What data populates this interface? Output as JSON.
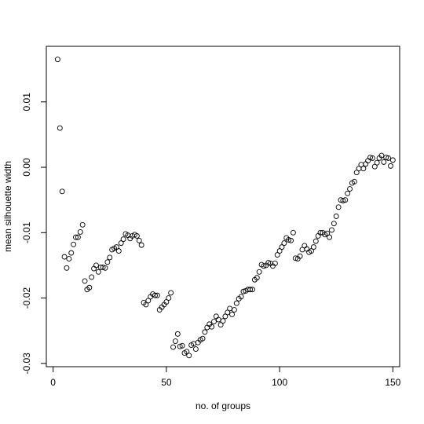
{
  "chart_data": {
    "type": "scatter",
    "title": "",
    "xlabel": "no. of groups",
    "ylabel": "mean silhouette width",
    "xlim": [
      -3,
      153
    ],
    "ylim": [
      -0.0305,
      0.0185
    ],
    "x_ticks": [
      {
        "value": 0,
        "label": "0"
      },
      {
        "value": 50,
        "label": "50"
      },
      {
        "value": 100,
        "label": "100"
      },
      {
        "value": 150,
        "label": "150"
      }
    ],
    "y_ticks": [
      {
        "value": -0.03,
        "label": "-0.03"
      },
      {
        "value": -0.02,
        "label": "-0.02"
      },
      {
        "value": -0.01,
        "label": "-0.01"
      },
      {
        "value": 0.0,
        "label": "0.00"
      },
      {
        "value": 0.01,
        "label": "0.01"
      }
    ],
    "grid": false,
    "x": [
      2,
      3,
      4,
      5,
      6,
      7,
      8,
      9,
      10,
      11,
      12,
      13,
      14,
      15,
      16,
      17,
      18,
      19,
      20,
      21,
      22,
      23,
      24,
      25,
      26,
      27,
      28,
      29,
      30,
      31,
      32,
      33,
      34,
      35,
      36,
      37,
      38,
      39,
      40,
      41,
      42,
      43,
      44,
      45,
      46,
      47,
      48,
      49,
      50,
      51,
      52,
      53,
      54,
      55,
      56,
      57,
      58,
      59,
      60,
      61,
      62,
      63,
      64,
      65,
      66,
      67,
      68,
      69,
      70,
      71,
      72,
      73,
      74,
      75,
      76,
      77,
      78,
      79,
      80,
      81,
      82,
      83,
      84,
      85,
      86,
      87,
      88,
      89,
      90,
      91,
      92,
      93,
      94,
      95,
      96,
      97,
      98,
      99,
      100,
      101,
      102,
      103,
      104,
      105,
      106,
      107,
      108,
      109,
      110,
      111,
      112,
      113,
      114,
      115,
      116,
      117,
      118,
      119,
      120,
      121,
      122,
      123,
      124,
      125,
      126,
      127,
      128,
      129,
      130,
      131,
      132,
      133,
      134,
      135,
      136,
      137,
      138,
      139,
      140,
      141,
      142,
      143,
      144,
      145,
      146,
      147,
      148,
      149,
      150
    ],
    "y": [
      0.0165,
      0.006,
      -0.0037,
      -0.0137,
      -0.0154,
      -0.014,
      -0.0131,
      -0.0118,
      -0.0107,
      -0.0107,
      -0.0099,
      -0.0088,
      -0.0174,
      -0.0187,
      -0.0184,
      -0.0168,
      -0.0155,
      -0.015,
      -0.016,
      -0.0153,
      -0.0153,
      -0.0154,
      -0.0145,
      -0.0138,
      -0.0126,
      -0.0124,
      -0.0122,
      -0.0128,
      -0.0116,
      -0.011,
      -0.0102,
      -0.0104,
      -0.0109,
      -0.0105,
      -0.0103,
      -0.0105,
      -0.0112,
      -0.0119,
      -0.0207,
      -0.021,
      -0.0204,
      -0.0198,
      -0.0194,
      -0.0196,
      -0.0196,
      -0.0218,
      -0.0214,
      -0.021,
      -0.0206,
      -0.02,
      -0.0192,
      -0.0275,
      -0.0266,
      -0.0255,
      -0.0274,
      -0.0273,
      -0.0284,
      -0.0282,
      -0.0288,
      -0.0272,
      -0.027,
      -0.0278,
      -0.0268,
      -0.0264,
      -0.0262,
      -0.0252,
      -0.0245,
      -0.024,
      -0.0244,
      -0.0236,
      -0.0228,
      -0.0233,
      -0.0241,
      -0.0235,
      -0.0228,
      -0.0222,
      -0.0216,
      -0.0225,
      -0.0218,
      -0.0208,
      -0.0201,
      -0.0198,
      -0.019,
      -0.0189,
      -0.0187,
      -0.0187,
      -0.0187,
      -0.0172,
      -0.0169,
      -0.016,
      -0.0149,
      -0.0151,
      -0.015,
      -0.0146,
      -0.0147,
      -0.0151,
      -0.0147,
      -0.0134,
      -0.0128,
      -0.0122,
      -0.0116,
      -0.0108,
      -0.0111,
      -0.0112,
      -0.01,
      -0.0139,
      -0.014,
      -0.0136,
      -0.0126,
      -0.012,
      -0.0125,
      -0.013,
      -0.0128,
      -0.0122,
      -0.0113,
      -0.0105,
      -0.01,
      -0.01,
      -0.0103,
      -0.0101,
      -0.0107,
      -0.0096,
      -0.0086,
      -0.0075,
      -0.0061,
      -0.005,
      -0.0051,
      -0.005,
      -0.004,
      -0.0033,
      -0.0024,
      -0.0022,
      -0.0008,
      -0.0002,
      0.0004,
      -0.0002,
      0.0005,
      0.001,
      0.0015,
      0.0014,
      0.0001,
      0.0007,
      0.0014,
      0.0018,
      0.0008,
      0.0015,
      0.0014,
      0.0002,
      0.0011
    ]
  }
}
